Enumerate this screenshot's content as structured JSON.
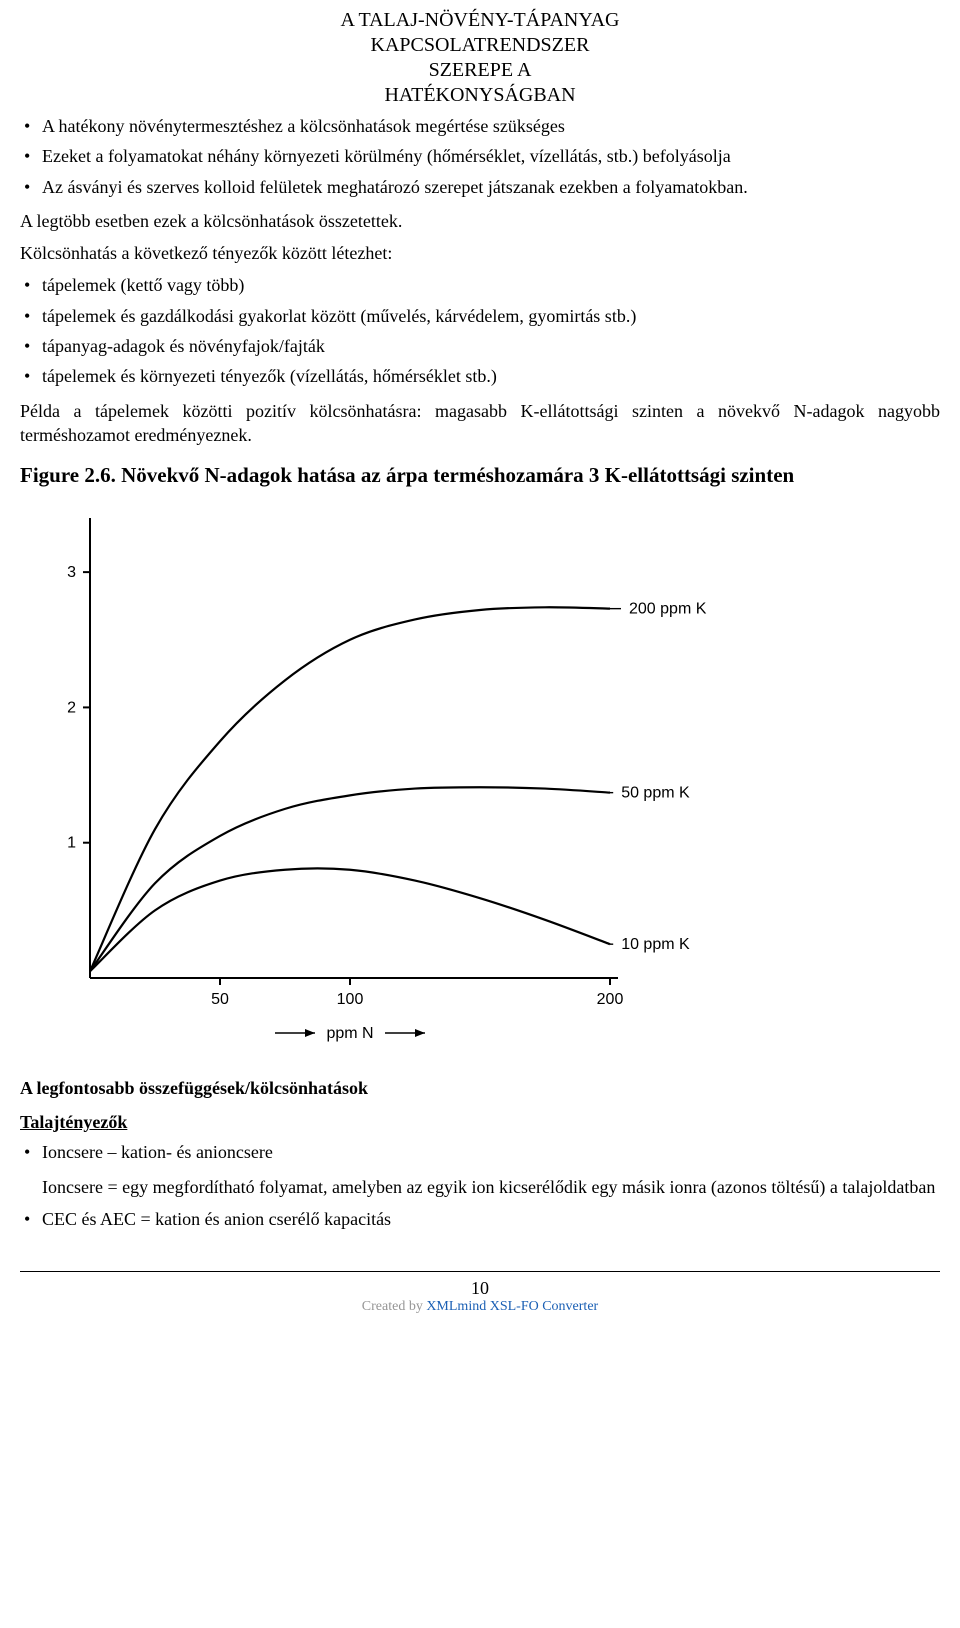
{
  "header": {
    "line1": "A TALAJ-NÖVÉNY-TÁPANYAG",
    "line2": "KAPCSOLATRENDSZER",
    "line3": "SZEREPE A",
    "line4": "HATÉKONYSÁGBAN"
  },
  "top_bullets": [
    "A hatékony növénytermesztéshez a kölcsönhatások megértése szükséges",
    "Ezeket a folyamatokat néhány környezeti körülmény (hőmérséklet, vízellátás, stb.) befolyásolja",
    "Az ásványi és szerves kolloid felületek meghatározó szerepet játszanak ezekben a folyamatokban."
  ],
  "para1": "A legtöbb esetben ezek a kölcsönhatások összetettek.",
  "para2": "Kölcsönhatás a következő tényezők között létezhet:",
  "mid_bullets": [
    "tápelemek (kettő vagy több)",
    "tápelemek és gazdálkodási gyakorlat között (művelés, kárvédelem, gyomirtás stb.)",
    "tápanyag-adagok és növényfajok/fajták",
    "tápelemek és környezeti tényezők (vízellátás, hőmérséklet stb.)"
  ],
  "para3": "Példa a tápelemek közötti pozitív kölcsönhatásra: magasabb K-ellátottsági szinten a növekvő N-adagok nagyobb terméshozamot eredményeznek.",
  "figcap": "Figure 2.6. Növekvő N-adagok hatása az árpa terméshozamára 3 K-ellátottsági szinten",
  "chart": {
    "type": "line",
    "background_color": "#ffffff",
    "axis_color": "#000000",
    "line_color": "#000000",
    "line_width": 2.2,
    "label_fontsize": 16,
    "tick_fontsize": 16,
    "series_label_fontsize": 16,
    "xlim": [
      0,
      200
    ],
    "ylim": [
      0,
      3.4
    ],
    "x_ticks": [
      50,
      100,
      200
    ],
    "y_ticks": [
      1,
      2,
      3
    ],
    "x_axis_label": "ppm N",
    "series": [
      {
        "label": "200 ppm K",
        "points": [
          {
            "x": 0,
            "y": 0.05
          },
          {
            "x": 25,
            "y": 1.1
          },
          {
            "x": 50,
            "y": 1.75
          },
          {
            "x": 75,
            "y": 2.2
          },
          {
            "x": 100,
            "y": 2.5
          },
          {
            "x": 125,
            "y": 2.65
          },
          {
            "x": 150,
            "y": 2.72
          },
          {
            "x": 175,
            "y": 2.74
          },
          {
            "x": 200,
            "y": 2.73
          }
        ],
        "label_xy": {
          "x": 225,
          "y": 2.73
        }
      },
      {
        "label": "50 ppm K",
        "points": [
          {
            "x": 0,
            "y": 0.05
          },
          {
            "x": 25,
            "y": 0.7
          },
          {
            "x": 50,
            "y": 1.05
          },
          {
            "x": 75,
            "y": 1.25
          },
          {
            "x": 100,
            "y": 1.35
          },
          {
            "x": 125,
            "y": 1.4
          },
          {
            "x": 150,
            "y": 1.41
          },
          {
            "x": 175,
            "y": 1.4
          },
          {
            "x": 200,
            "y": 1.37
          }
        ],
        "label_xy": {
          "x": 222,
          "y": 1.37
        }
      },
      {
        "label": "10 ppm K",
        "points": [
          {
            "x": 0,
            "y": 0.05
          },
          {
            "x": 25,
            "y": 0.5
          },
          {
            "x": 50,
            "y": 0.72
          },
          {
            "x": 75,
            "y": 0.8
          },
          {
            "x": 100,
            "y": 0.8
          },
          {
            "x": 125,
            "y": 0.72
          },
          {
            "x": 150,
            "y": 0.59
          },
          {
            "x": 175,
            "y": 0.43
          },
          {
            "x": 200,
            "y": 0.25
          }
        ],
        "label_xy": {
          "x": 222,
          "y": 0.25
        }
      }
    ]
  },
  "section_head": "A legfontosabb összefüggések/kölcsönhatások",
  "subhead": "Talajtényezők",
  "low_bullets": {
    "item1": "Ioncsere – kation- és anioncsere",
    "item1_sub": "Ioncsere = egy megfordítható folyamat, amelyben az egyik ion kicserélődik egy másik ionra (azonos töltésű) a talajoldatban",
    "item2": "CEC és AEC = kation és anion cserélő kapacitás"
  },
  "footer": {
    "page_number": "10",
    "created_prefix": "Created by ",
    "created_link": "XMLmind XSL-FO Converter"
  }
}
